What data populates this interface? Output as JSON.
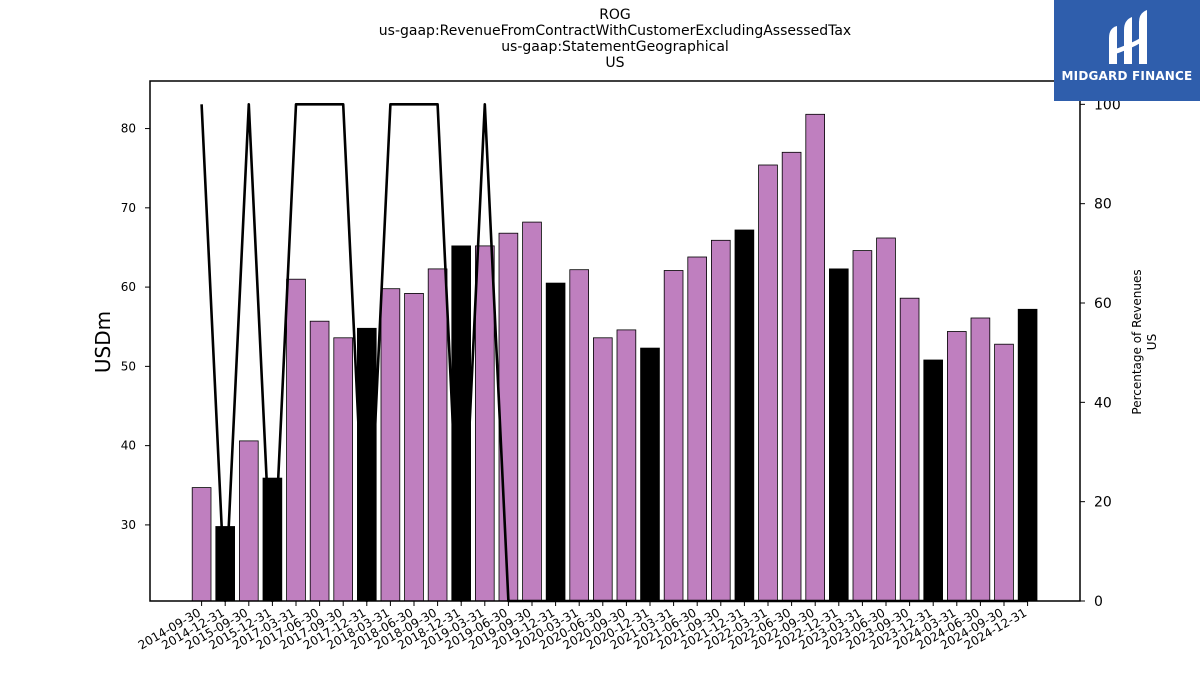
{
  "title_lines": [
    "ROG",
    "us-gaap:RevenueFromContractWithCustomerExcludingAssessedTax",
    "us-gaap:StatementGeographical",
    "US"
  ],
  "logo": {
    "text": "MIDGARD FINANCE",
    "bg_color": "#2f5eac"
  },
  "chart_data": {
    "type": "bar",
    "categories": [
      "2014-09-30",
      "2014-12-31",
      "2015-09-30",
      "2015-12-31",
      "2017-03-31",
      "2017-06-30",
      "2017-09-30",
      "2017-12-31",
      "2018-03-31",
      "2018-06-30",
      "2018-09-30",
      "2018-12-31",
      "2019-03-31",
      "2019-06-30",
      "2019-09-30",
      "2019-12-31",
      "2020-03-31",
      "2020-06-30",
      "2020-09-30",
      "2020-12-31",
      "2021-03-31",
      "2021-06-30",
      "2021-09-30",
      "2021-12-31",
      "2022-03-31",
      "2022-06-30",
      "2022-09-30",
      "2022-12-31",
      "2023-03-31",
      "2023-06-30",
      "2023-09-30",
      "2023-12-31",
      "2024-03-31",
      "2024-06-30",
      "2024-09-30",
      "2024-12-31"
    ],
    "series": [
      {
        "values": [
          34.7,
          29.8,
          40.6,
          35.9,
          61.0,
          55.7,
          53.6,
          54.8,
          59.8,
          59.2,
          62.3,
          65.2,
          65.2,
          66.8,
          68.2,
          60.5,
          62.2,
          53.6,
          54.6,
          52.3,
          62.1,
          63.8,
          65.9,
          67.2,
          75.4,
          77.0,
          81.8,
          62.3,
          64.6,
          66.2,
          58.6,
          50.8,
          54.4,
          56.1,
          52.8,
          57.2
        ],
        "colors": [
          "#bf7fbf",
          "#000000",
          "#bf7fbf",
          "#000000",
          "#bf7fbf",
          "#bf7fbf",
          "#bf7fbf",
          "#000000",
          "#bf7fbf",
          "#bf7fbf",
          "#bf7fbf",
          "#000000",
          "#bf7fbf",
          "#bf7fbf",
          "#bf7fbf",
          "#000000",
          "#bf7fbf",
          "#bf7fbf",
          "#bf7fbf",
          "#000000",
          "#bf7fbf",
          "#bf7fbf",
          "#bf7fbf",
          "#000000",
          "#bf7fbf",
          "#bf7fbf",
          "#bf7fbf",
          "#000000",
          "#bf7fbf",
          "#bf7fbf",
          "#bf7fbf",
          "#000000",
          "#bf7fbf",
          "#bf7fbf",
          "#bf7fbf",
          "#000000"
        ],
        "axis": "left"
      },
      {
        "type": "line",
        "axis": "right",
        "color": "#000000",
        "values": [
          100,
          0,
          100,
          0,
          100,
          100,
          100,
          0,
          100,
          100,
          100,
          0,
          100,
          0,
          0,
          0,
          0,
          0,
          0,
          0,
          0,
          0,
          0,
          0,
          0,
          0,
          0,
          0,
          0,
          0,
          0,
          0,
          0,
          0,
          0,
          0
        ]
      }
    ],
    "ylabel": "USDm",
    "y2label_lines": [
      "Percentage of Revenues",
      "US"
    ],
    "ylim": [
      20.4,
      86.0
    ],
    "yticks": [
      30,
      40,
      50,
      60,
      70,
      80
    ],
    "y2lim": [
      0,
      104.7
    ],
    "y2ticks": [
      0,
      20,
      40,
      60,
      80,
      100
    ],
    "grid": false,
    "colors": {
      "bar_default": "#bf7fbf",
      "bar_highlight": "#000000",
      "line": "#000000"
    }
  }
}
